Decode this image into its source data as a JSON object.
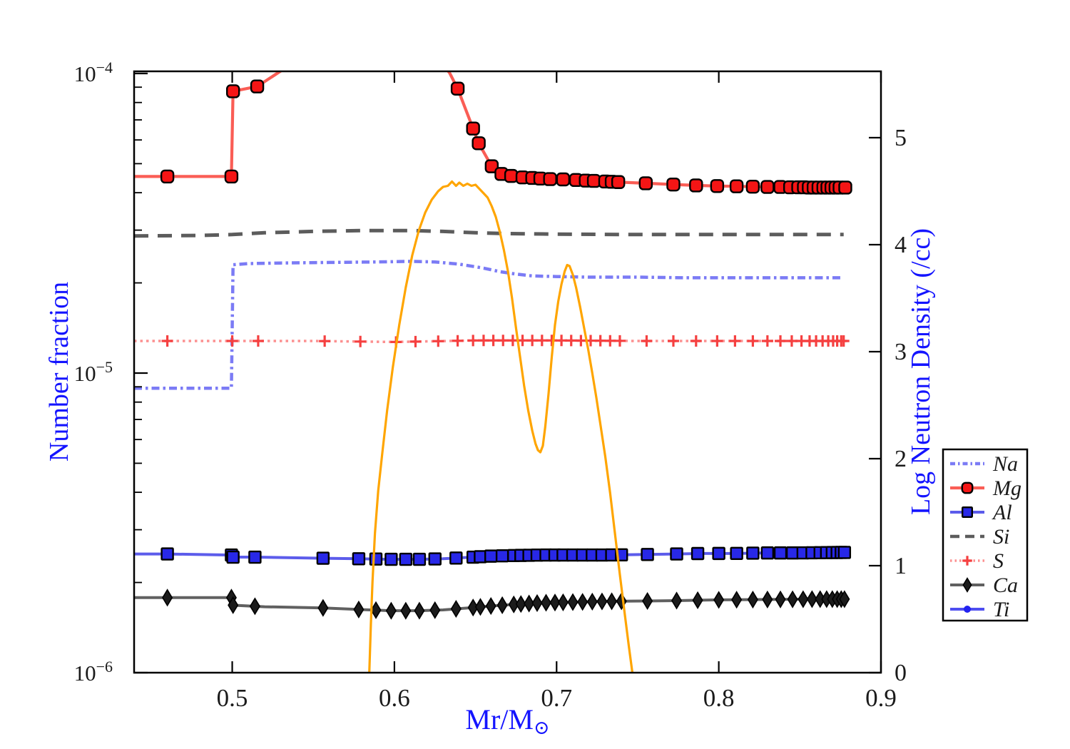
{
  "figure": {
    "background": "#ffffff",
    "axis_title_color": "#1414ff",
    "tick_label_color": "#1a1a1a",
    "spine_color": "#000000"
  },
  "axes": {
    "x": {
      "label_main": "Mr/M",
      "label_sub": "⊙",
      "range": [
        0.4395,
        0.9
      ],
      "ticks": [
        0.5,
        0.6,
        0.7,
        0.8,
        0.9
      ],
      "tick_labels": [
        "0.5",
        "0.6",
        "0.7",
        "0.8",
        "0.9"
      ]
    },
    "y_left": {
      "label": "Number fraction",
      "scale": "log",
      "range": [
        1e-06,
        0.000102
      ],
      "decades": [
        -4,
        -5,
        -6
      ],
      "ticks": [
        {
          "base": "10",
          "exp": "−4"
        },
        {
          "base": "10",
          "exp": "−5"
        },
        {
          "base": "10",
          "exp": "−6"
        }
      ]
    },
    "y_right": {
      "label": "Log Neutron Density (/cc)",
      "range": [
        0,
        5.62
      ],
      "ticks": [
        0,
        1,
        2,
        3,
        4,
        5
      ],
      "tick_labels": [
        "0",
        "1",
        "2",
        "3",
        "4",
        "5"
      ]
    }
  },
  "legend": {
    "entries": [
      {
        "label": "Na",
        "series": "Na"
      },
      {
        "label": "Mg",
        "series": "Mg"
      },
      {
        "label": "Al",
        "series": "Al"
      },
      {
        "label": "Si",
        "series": "Si"
      },
      {
        "label": "S",
        "series": "S"
      },
      {
        "label": "Ca",
        "series": "Ca"
      },
      {
        "label": "Ti",
        "series": "Ti"
      }
    ]
  },
  "chart_data": {
    "type": "line",
    "title": "",
    "xlabel": "Mr/M⊙",
    "ylabel_left": "Number fraction",
    "ylabel_right": "Log Neutron Density (/cc)",
    "x_range": [
      0.4395,
      0.9
    ],
    "y_left_log_range": [
      1e-06,
      0.000102
    ],
    "y_right_range": [
      0,
      5.62
    ],
    "series": [
      {
        "name": "Na",
        "color": "#5a5af2",
        "line": "dashdot",
        "width": 4.5,
        "opacity": 0.8,
        "marker": "none",
        "marker_color": "#5a5af2",
        "marker_size": 0,
        "points": [
          [
            0.4395,
            8.9e-06
          ],
          [
            0.4995,
            8.9e-06
          ],
          [
            0.5005,
            2.3e-05
          ],
          [
            0.51,
            2.32e-05
          ],
          [
            0.53,
            2.33e-05
          ],
          [
            0.56,
            2.34e-05
          ],
          [
            0.59,
            2.35e-05
          ],
          [
            0.61,
            2.36e-05
          ],
          [
            0.625,
            2.35e-05
          ],
          [
            0.64,
            2.31e-05
          ],
          [
            0.655,
            2.24e-05
          ],
          [
            0.665,
            2.18e-05
          ],
          [
            0.675,
            2.14e-05
          ],
          [
            0.685,
            2.11e-05
          ],
          [
            0.7,
            2.1e-05
          ],
          [
            0.72,
            2.09e-05
          ],
          [
            0.75,
            2.09e-05
          ],
          [
            0.78,
            2.08e-05
          ],
          [
            0.82,
            2.08e-05
          ],
          [
            0.877,
            2.08e-05
          ]
        ],
        "markers_x": []
      },
      {
        "name": "Mg",
        "color": "#fa4b43",
        "line": "solid",
        "width": 4.2,
        "opacity": 0.9,
        "marker": "rounded-square",
        "marker_color": "#f51515",
        "marker_size": 17,
        "points": [
          [
            0.4395,
            4.53e-05
          ],
          [
            0.46,
            4.53e-05
          ],
          [
            0.4995,
            4.53e-05
          ],
          [
            0.5005,
            8.72e-05
          ],
          [
            0.5154,
            9.05e-05
          ],
          [
            0.53,
            0.000102
          ],
          [
            0.56,
            0.00015
          ],
          [
            0.6,
            0.00016
          ],
          [
            0.62,
            0.00013
          ],
          [
            0.628,
            0.00011
          ],
          [
            0.634,
            0.0001005
          ],
          [
            0.639,
            8.9e-05
          ],
          [
            0.6485,
            6.55e-05
          ],
          [
            0.652,
            5.85e-05
          ],
          [
            0.66,
            4.9e-05
          ],
          [
            0.666,
            4.62e-05
          ],
          [
            0.672,
            4.55e-05
          ],
          [
            0.679,
            4.5e-05
          ],
          [
            0.685,
            4.48e-05
          ],
          [
            0.69,
            4.46e-05
          ],
          [
            0.696,
            4.44e-05
          ],
          [
            0.704,
            4.43e-05
          ],
          [
            0.712,
            4.41e-05
          ],
          [
            0.718,
            4.39e-05
          ],
          [
            0.723,
            4.38e-05
          ],
          [
            0.73,
            4.36e-05
          ],
          [
            0.734,
            4.35e-05
          ],
          [
            0.738,
            4.34e-05
          ],
          [
            0.755,
            4.3e-05
          ],
          [
            0.772,
            4.26e-05
          ],
          [
            0.786,
            4.23e-05
          ],
          [
            0.799,
            4.21e-05
          ],
          [
            0.811,
            4.2e-05
          ],
          [
            0.821,
            4.19e-05
          ],
          [
            0.83,
            4.18e-05
          ],
          [
            0.838,
            4.18e-05
          ],
          [
            0.844,
            4.17e-05
          ],
          [
            0.849,
            4.17e-05
          ],
          [
            0.853,
            4.17e-05
          ],
          [
            0.856,
            4.16e-05
          ],
          [
            0.859,
            4.16e-05
          ],
          [
            0.862,
            4.16e-05
          ],
          [
            0.865,
            4.16e-05
          ],
          [
            0.867,
            4.16e-05
          ],
          [
            0.869,
            4.16e-05
          ],
          [
            0.871,
            4.16e-05
          ],
          [
            0.873,
            4.16e-05
          ],
          [
            0.875,
            4.16e-05
          ],
          [
            0.878,
            4.16e-05
          ]
        ],
        "markers_x": [
          0.46,
          0.4995,
          0.5005,
          0.5154,
          0.639,
          0.6485,
          0.652,
          0.66,
          0.666,
          0.672,
          0.679,
          0.685,
          0.69,
          0.696,
          0.704,
          0.712,
          0.718,
          0.723,
          0.73,
          0.734,
          0.738,
          0.755,
          0.772,
          0.786,
          0.799,
          0.811,
          0.821,
          0.83,
          0.838,
          0.844,
          0.849,
          0.8525,
          0.8555,
          0.8585,
          0.8615,
          0.8645,
          0.867,
          0.8695,
          0.872,
          0.8745,
          0.878
        ]
      },
      {
        "name": "Al",
        "color": "#4040e8",
        "line": "solid",
        "width": 4,
        "opacity": 0.85,
        "marker": "square",
        "marker_color": "#2828e8",
        "marker_size": 16,
        "points": [
          [
            0.4395,
            2.49e-06
          ],
          [
            0.46,
            2.49e-06
          ],
          [
            0.4995,
            2.47e-06
          ],
          [
            0.5005,
            2.43e-06
          ],
          [
            0.514,
            2.43e-06
          ],
          [
            0.556,
            2.41e-06
          ],
          [
            0.578,
            2.4e-06
          ],
          [
            0.598,
            2.39e-06
          ],
          [
            0.615,
            2.39e-06
          ],
          [
            0.63,
            2.4e-06
          ],
          [
            0.6485,
            2.43e-06
          ],
          [
            0.66,
            2.45e-06
          ],
          [
            0.674,
            2.46e-06
          ],
          [
            0.69,
            2.47e-06
          ],
          [
            0.71,
            2.47e-06
          ],
          [
            0.73,
            2.47e-06
          ],
          [
            0.756,
            2.48e-06
          ],
          [
            0.774,
            2.49e-06
          ],
          [
            0.79,
            2.5e-06
          ],
          [
            0.81,
            2.5e-06
          ],
          [
            0.83,
            2.51e-06
          ],
          [
            0.85,
            2.51e-06
          ],
          [
            0.877,
            2.52e-06
          ]
        ],
        "markers_x": [
          0.46,
          0.4995,
          0.5005,
          0.514,
          0.556,
          0.578,
          0.5886,
          0.598,
          0.607,
          0.6154,
          0.625,
          0.638,
          0.6485,
          0.653,
          0.6595,
          0.6665,
          0.6736,
          0.678,
          0.683,
          0.688,
          0.6935,
          0.699,
          0.704,
          0.71,
          0.716,
          0.722,
          0.728,
          0.734,
          0.74,
          0.756,
          0.774,
          0.787,
          0.8,
          0.811,
          0.821,
          0.83,
          0.838,
          0.8455,
          0.852,
          0.8575,
          0.8625,
          0.8665,
          0.87,
          0.873,
          0.8755,
          0.8775
        ]
      },
      {
        "name": "Si",
        "color": "#4a4a4a",
        "line": "dashed",
        "width": 5,
        "opacity": 0.9,
        "marker": "none",
        "marker_color": "#4a4a4a",
        "marker_size": 0,
        "points": [
          [
            0.4395,
            2.87e-05
          ],
          [
            0.48,
            2.88e-05
          ],
          [
            0.5,
            2.9e-05
          ],
          [
            0.52,
            2.94e-05
          ],
          [
            0.55,
            2.97e-05
          ],
          [
            0.58,
            2.99e-05
          ],
          [
            0.61,
            2.99e-05
          ],
          [
            0.63,
            2.97e-05
          ],
          [
            0.65,
            2.94e-05
          ],
          [
            0.67,
            2.92e-05
          ],
          [
            0.7,
            2.91e-05
          ],
          [
            0.74,
            2.9e-05
          ],
          [
            0.78,
            2.9e-05
          ],
          [
            0.82,
            2.9e-05
          ],
          [
            0.877,
            2.9e-05
          ]
        ],
        "markers_x": []
      },
      {
        "name": "S",
        "color": "#fb7d7d",
        "line": "dotted",
        "width": 3.5,
        "opacity": 0.85,
        "marker": "plus",
        "marker_color": "#f54040",
        "marker_size": 16,
        "points": [
          [
            0.4395,
            1.28e-05
          ],
          [
            0.55,
            1.28e-05
          ],
          [
            0.6,
            1.27e-05
          ],
          [
            0.65,
            1.285e-05
          ],
          [
            0.7,
            1.285e-05
          ],
          [
            0.75,
            1.28e-05
          ],
          [
            0.877,
            1.28e-05
          ]
        ],
        "markers_x": [
          0.46,
          0.5,
          0.516,
          0.557,
          0.579,
          0.601,
          0.613,
          0.627,
          0.639,
          0.6485,
          0.655,
          0.661,
          0.667,
          0.673,
          0.679,
          0.685,
          0.691,
          0.697,
          0.703,
          0.709,
          0.715,
          0.721,
          0.727,
          0.733,
          0.739,
          0.7555,
          0.772,
          0.786,
          0.799,
          0.81,
          0.821,
          0.83,
          0.838,
          0.845,
          0.851,
          0.856,
          0.86,
          0.864,
          0.8675,
          0.8705,
          0.873,
          0.8755,
          0.877
        ]
      },
      {
        "name": "Ca",
        "color": "#4f4f4f",
        "line": "solid",
        "width": 4,
        "opacity": 0.9,
        "marker": "diamond",
        "marker_color": "#1b1b1b",
        "marker_size": 22,
        "points": [
          [
            0.4395,
            1.78e-06
          ],
          [
            0.46,
            1.78e-06
          ],
          [
            0.4995,
            1.78e-06
          ],
          [
            0.5005,
            1.68e-06
          ],
          [
            0.52,
            1.66e-06
          ],
          [
            0.556,
            1.645e-06
          ],
          [
            0.578,
            1.625e-06
          ],
          [
            0.598,
            1.61e-06
          ],
          [
            0.615,
            1.61e-06
          ],
          [
            0.63,
            1.62e-06
          ],
          [
            0.6485,
            1.65e-06
          ],
          [
            0.66,
            1.67e-06
          ],
          [
            0.674,
            1.69e-06
          ],
          [
            0.69,
            1.71e-06
          ],
          [
            0.71,
            1.72e-06
          ],
          [
            0.73,
            1.73e-06
          ],
          [
            0.756,
            1.735e-06
          ],
          [
            0.774,
            1.74e-06
          ],
          [
            0.8,
            1.75e-06
          ],
          [
            0.83,
            1.755e-06
          ],
          [
            0.86,
            1.76e-06
          ],
          [
            0.877,
            1.76e-06
          ]
        ],
        "markers_x": [
          0.46,
          0.4995,
          0.5005,
          0.514,
          0.556,
          0.578,
          0.5886,
          0.598,
          0.607,
          0.6154,
          0.625,
          0.638,
          0.6485,
          0.653,
          0.6595,
          0.6665,
          0.6736,
          0.678,
          0.683,
          0.688,
          0.6935,
          0.699,
          0.704,
          0.71,
          0.716,
          0.722,
          0.728,
          0.734,
          0.74,
          0.756,
          0.774,
          0.787,
          0.8,
          0.811,
          0.821,
          0.83,
          0.838,
          0.8455,
          0.852,
          0.8575,
          0.8625,
          0.8665,
          0.87,
          0.873,
          0.8755,
          0.8775
        ]
      },
      {
        "name": "Ti",
        "color": "#3b3bf0",
        "line": "solid",
        "width": 4,
        "opacity": 0.9,
        "marker": "circle",
        "marker_color": "#2222f0",
        "marker_size": 11,
        "points": [],
        "markers_x": []
      }
    ],
    "neutron_density": {
      "name": "Log Neutron Density",
      "color": "#ffa500",
      "width": 3.2,
      "axis": "right",
      "points": [
        [
          0.5845,
          0.0
        ],
        [
          0.5855,
          0.45
        ],
        [
          0.5865,
          0.85
        ],
        [
          0.588,
          1.3
        ],
        [
          0.59,
          1.7
        ],
        [
          0.5925,
          2.05
        ],
        [
          0.5955,
          2.45
        ],
        [
          0.599,
          2.85
        ],
        [
          0.603,
          3.25
        ],
        [
          0.607,
          3.6
        ],
        [
          0.611,
          3.9
        ],
        [
          0.615,
          4.13
        ],
        [
          0.619,
          4.3
        ],
        [
          0.623,
          4.42
        ],
        [
          0.627,
          4.5
        ],
        [
          0.63,
          4.54
        ],
        [
          0.633,
          4.55
        ],
        [
          0.6355,
          4.59
        ],
        [
          0.638,
          4.55
        ],
        [
          0.64,
          4.58
        ],
        [
          0.6425,
          4.55
        ],
        [
          0.645,
          4.57
        ],
        [
          0.6475,
          4.55
        ],
        [
          0.65,
          4.56
        ],
        [
          0.6525,
          4.52
        ],
        [
          0.655,
          4.48
        ],
        [
          0.6575,
          4.44
        ],
        [
          0.66,
          4.36
        ],
        [
          0.6625,
          4.26
        ],
        [
          0.665,
          4.12
        ],
        [
          0.6675,
          3.95
        ],
        [
          0.67,
          3.75
        ],
        [
          0.6725,
          3.5
        ],
        [
          0.675,
          3.22
        ],
        [
          0.6775,
          2.95
        ],
        [
          0.68,
          2.68
        ],
        [
          0.6825,
          2.45
        ],
        [
          0.685,
          2.26
        ],
        [
          0.687,
          2.14
        ],
        [
          0.6885,
          2.08
        ],
        [
          0.69,
          2.06
        ],
        [
          0.6915,
          2.12
        ],
        [
          0.693,
          2.3
        ],
        [
          0.695,
          2.6
        ],
        [
          0.697,
          2.95
        ],
        [
          0.699,
          3.25
        ],
        [
          0.701,
          3.47
        ],
        [
          0.703,
          3.63
        ],
        [
          0.705,
          3.75
        ],
        [
          0.7065,
          3.81
        ],
        [
          0.708,
          3.8
        ],
        [
          0.71,
          3.72
        ],
        [
          0.712,
          3.6
        ],
        [
          0.7145,
          3.42
        ],
        [
          0.717,
          3.22
        ],
        [
          0.7195,
          3.02
        ],
        [
          0.722,
          2.8
        ],
        [
          0.7245,
          2.57
        ],
        [
          0.727,
          2.32
        ],
        [
          0.73,
          2.02
        ],
        [
          0.733,
          1.68
        ],
        [
          0.736,
          1.3
        ],
        [
          0.739,
          0.92
        ],
        [
          0.742,
          0.55
        ],
        [
          0.7445,
          0.25
        ],
        [
          0.7467,
          0.0
        ]
      ]
    }
  }
}
